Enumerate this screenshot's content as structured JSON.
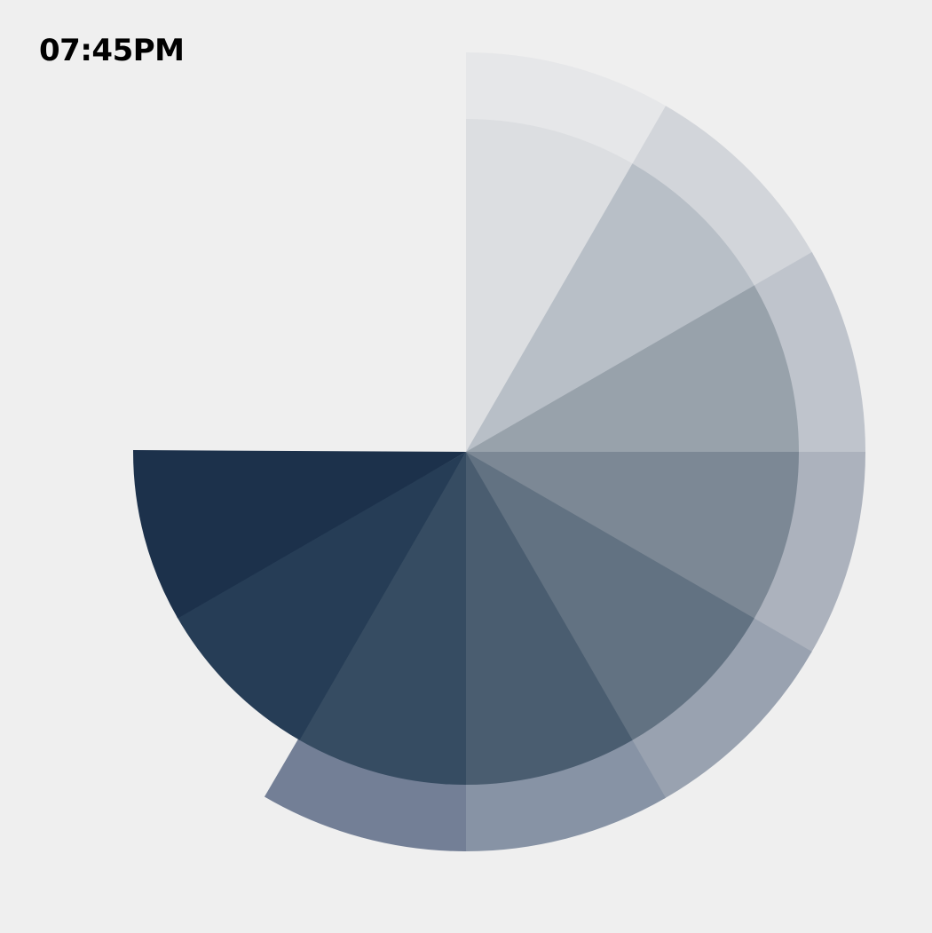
{
  "clock": {
    "time_text": "07:45PM",
    "hours": 7,
    "minutes": 45,
    "period": "PM"
  },
  "hour_ring": {
    "segments_total": 12,
    "segments_shown": 7,
    "colors": [
      "#e6e7e9",
      "#d2d5da",
      "#bfc4cc",
      "#acb2bd",
      "#99a2b0",
      "#8793a5",
      "#737f96"
    ]
  },
  "minute_disc": {
    "segments_total": 12,
    "segments_shown": 9,
    "colors": [
      "#dcdee1",
      "#b8bfc7",
      "#98a2ab",
      "#7c8895",
      "#627282",
      "#4a5d70",
      "#364c62",
      "#263d56",
      "#1c314b"
    ]
  },
  "background_color": "#efefef"
}
